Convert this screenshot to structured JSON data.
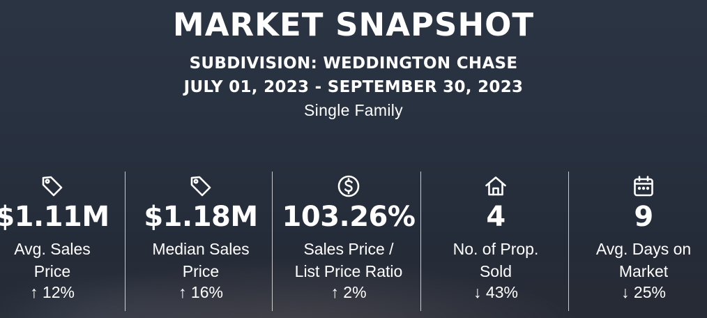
{
  "header": {
    "title": "MARKET SNAPSHOT",
    "subdivision": "SUBDIVISION: WEDDINGTON CHASE",
    "date_range": "JULY 01, 2023 - SEPTEMBER 30, 2023",
    "property_type": "Single Family"
  },
  "stats": [
    {
      "icon": "price-tag-icon",
      "value": "$1.11M",
      "label_line1": "Avg. Sales",
      "label_line2": "Price",
      "change": "↑ 12%"
    },
    {
      "icon": "price-tag-icon",
      "value": "$1.18M",
      "label_line1": "Median Sales",
      "label_line2": "Price",
      "change": "↑ 16%"
    },
    {
      "icon": "dollar-circle-icon",
      "value": "103.26%",
      "label_line1": "Sales Price /",
      "label_line2": "List Price Ratio",
      "change": "↑ 2%"
    },
    {
      "icon": "house-icon",
      "value": "4",
      "label_line1": "No. of Prop.",
      "label_line2": "Sold",
      "change": "↓ 43%"
    },
    {
      "icon": "calendar-icon",
      "value": "9",
      "label_line1": "Avg. Days on",
      "label_line2": "Market",
      "change": "↓ 25%"
    }
  ],
  "colors": {
    "text": "#ffffff",
    "background": "#283140"
  }
}
